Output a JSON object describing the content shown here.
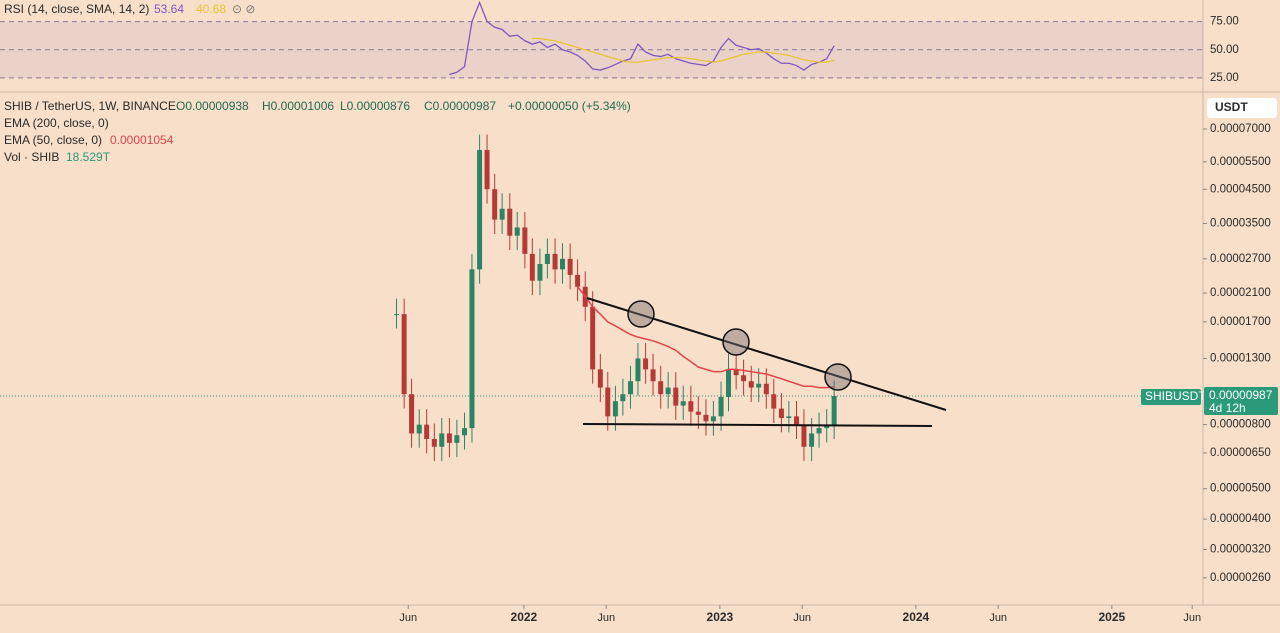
{
  "chart_data": {
    "type": "candlestick",
    "symbol": "SHIB / TetherUS, 1W, BINANCE",
    "ohlc": [
      "O0.00000938",
      "H0.00001006",
      "L0.00000876",
      "C0.00000987",
      "+0.00000050 (+5.34%)"
    ],
    "indicators": [
      "EMA (200, close, 0)",
      "EMA (50, close, 0)",
      "Vol · SHIB"
    ],
    "indicator_values": [
      "0.00001054",
      "18.529T"
    ],
    "currency": "USDT",
    "price_tag": {
      "name": "SHIBUSDT",
      "value": 9.87e-06,
      "label": "0.00000987",
      "countdown": "4d 12h"
    },
    "log_scale": true,
    "up_color": "#2b8466",
    "down_color": "#b53a35",
    "x": [
      2021.35,
      2021.389,
      2021.427,
      2021.466,
      2021.504,
      2021.543,
      2021.581,
      2021.62,
      2021.658,
      2021.697,
      2021.735,
      2021.774,
      2021.812,
      2021.851,
      2021.889,
      2021.928,
      2021.966,
      2022.005,
      2022.043,
      2022.082,
      2022.12,
      2022.159,
      2022.197,
      2022.236,
      2022.274,
      2022.313,
      2022.351,
      2022.39,
      2022.428,
      2022.467,
      2022.505,
      2022.544,
      2022.582,
      2022.621,
      2022.659,
      2022.698,
      2022.736,
      2022.775,
      2022.813,
      2022.852,
      2022.89,
      2022.929,
      2022.967,
      2023.006,
      2023.044,
      2023.083,
      2023.121,
      2023.16,
      2023.198,
      2023.237,
      2023.275,
      2023.314,
      2023.352,
      2023.391,
      2023.429,
      2023.468,
      2023.506,
      2023.545,
      2023.583
    ],
    "values": [
      1.8e-05,
      1e-05,
      7.5e-06,
      8e-06,
      7.2e-06,
      6.8e-06,
      7.5e-06,
      7e-06,
      7.4e-06,
      7.8e-06,
      2.5e-05,
      6e-05,
      4.5e-05,
      3.6e-05,
      3.9e-05,
      3.2e-05,
      3.4e-05,
      2.8e-05,
      2.3e-05,
      2.6e-05,
      2.8e-05,
      2.5e-05,
      2.7e-05,
      2.4e-05,
      2.2e-05,
      1.9e-05,
      1.2e-05,
      1.05e-05,
      8.5e-06,
      9.5e-06,
      1e-05,
      1.1e-05,
      1.3e-05,
      1.2e-05,
      1.1e-05,
      1e-05,
      1.05e-05,
      9.2e-06,
      9.5e-06,
      8.8e-06,
      8.6e-06,
      8.2e-06,
      8.5e-06,
      9.8e-06,
      1.2e-05,
      1.15e-05,
      1.1e-05,
      1.05e-05,
      1.08e-05,
      1e-05,
      9e-06,
      8.4e-06,
      8.5e-06,
      8e-06,
      6.8e-06,
      7.5e-06,
      7.8e-06,
      8e-06,
      9.87e-06
    ],
    "ema50": {
      "name": "EMA 50",
      "color": "#e0444a",
      "values": [
        null,
        null,
        null,
        null,
        null,
        null,
        null,
        null,
        null,
        null,
        null,
        null,
        null,
        null,
        null,
        null,
        null,
        null,
        null,
        null,
        null,
        null,
        null,
        null,
        2.2e-05,
        2.05e-05,
        1.9e-05,
        1.8e-05,
        1.7e-05,
        1.65e-05,
        1.6e-05,
        1.55e-05,
        1.52e-05,
        1.5e-05,
        1.48e-05,
        1.45e-05,
        1.42e-05,
        1.38e-05,
        1.32e-05,
        1.27e-05,
        1.22e-05,
        1.2e-05,
        1.18e-05,
        1.18e-05,
        1.2e-05,
        1.2e-05,
        1.19e-05,
        1.18e-05,
        1.17e-05,
        1.16e-05,
        1.14e-05,
        1.12e-05,
        1.1e-05,
        1.08e-05,
        1.06e-05,
        1.06e-05,
        1.05e-05,
        1.05e-05,
        1.054e-05
      ]
    },
    "ylim": [
      2.13e-06,
      8.66e-05
    ],
    "yticks": [
      {
        "value": 7e-05,
        "label": "0.00007000"
      },
      {
        "value": 5.5e-05,
        "label": "0.00005500"
      },
      {
        "value": 4.5e-05,
        "label": "0.00004500"
      },
      {
        "value": 3.5e-05,
        "label": "0.00003500"
      },
      {
        "value": 2.7e-05,
        "label": "0.00002700"
      },
      {
        "value": 2.1e-05,
        "label": "0.00002100"
      },
      {
        "value": 1.7e-05,
        "label": "0.00001700"
      },
      {
        "value": 1.3e-05,
        "label": "0.00001300"
      },
      {
        "value": 8e-06,
        "label": "0.00000800"
      },
      {
        "value": 6.5e-06,
        "label": "0.00000650"
      },
      {
        "value": 5e-06,
        "label": "0.00000500"
      },
      {
        "value": 4e-06,
        "label": "0.00000400"
      },
      {
        "value": 3.2e-06,
        "label": "0.00000320"
      },
      {
        "value": 2.6e-06,
        "label": "0.00000260"
      }
    ],
    "xlim": [
      2019.327,
      2025.465
    ],
    "xticks": [
      {
        "value": 2021.41,
        "label": "Jun"
      },
      {
        "value": 2022,
        "label": "2022"
      },
      {
        "value": 2022.42,
        "label": "Jun"
      },
      {
        "value": 2023,
        "label": "2023"
      },
      {
        "value": 2023.42,
        "label": "Jun"
      },
      {
        "value": 2024,
        "label": "2024"
      },
      {
        "value": 2024.42,
        "label": "Jun"
      },
      {
        "value": 2025,
        "label": "2025"
      },
      {
        "value": 2025.41,
        "label": "Jun"
      }
    ],
    "rsi": {
      "title": "RSI (14, close, SMA, 14, 2)",
      "labels": [
        "53.64",
        "40.68"
      ],
      "ylim": [
        12.5,
        94.2
      ],
      "yticks": [
        {
          "value": 75,
          "label": "75.00"
        },
        {
          "value": 50,
          "label": "50.00"
        },
        {
          "value": 25,
          "label": "25.00"
        }
      ],
      "series": [
        {
          "name": "RSI",
          "color": "#7e57c2",
          "values": [
            null,
            null,
            null,
            null,
            null,
            null,
            null,
            28,
            30,
            35,
            75,
            92,
            75,
            70,
            68,
            62,
            63,
            58,
            55,
            57,
            52,
            55,
            50,
            48,
            45,
            40,
            33,
            32,
            34,
            37,
            40,
            42,
            55,
            48,
            45,
            44,
            46,
            42,
            40,
            38,
            37,
            36,
            40,
            52,
            60,
            54,
            52,
            50,
            51,
            47,
            42,
            38,
            38,
            36,
            32,
            37,
            39,
            42,
            53.64
          ]
        },
        {
          "name": "SMA",
          "color": "#e8c430",
          "values": [
            null,
            null,
            null,
            null,
            null,
            null,
            null,
            null,
            null,
            null,
            null,
            null,
            null,
            null,
            null,
            null,
            null,
            null,
            60,
            60,
            59,
            58,
            56,
            54,
            52,
            50,
            48,
            46,
            44,
            42,
            40,
            39,
            39,
            40,
            41,
            42,
            43,
            43,
            43,
            42,
            41,
            40,
            39,
            40,
            42,
            44,
            46,
            47,
            48,
            48,
            47,
            46,
            45,
            43,
            41,
            40,
            39,
            39,
            40.68
          ]
        }
      ]
    }
  }
}
